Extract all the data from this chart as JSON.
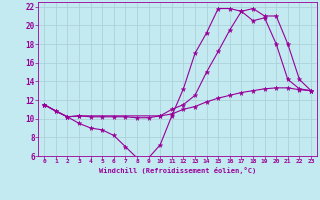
{
  "xlabel": "Windchill (Refroidissement éolien,°C)",
  "bg_color": "#c2eaf0",
  "grid_color": "#aaccd4",
  "line_color": "#990099",
  "xlim": [
    -0.5,
    23.5
  ],
  "ylim": [
    6,
    22.5
  ],
  "xticks": [
    0,
    1,
    2,
    3,
    4,
    5,
    6,
    7,
    8,
    9,
    10,
    11,
    12,
    13,
    14,
    15,
    16,
    17,
    18,
    19,
    20,
    21,
    22,
    23
  ],
  "yticks": [
    6,
    8,
    10,
    12,
    14,
    16,
    18,
    20,
    22
  ],
  "series_A_x": [
    0,
    1,
    2,
    3,
    4,
    5,
    6,
    7,
    8,
    9,
    10,
    11,
    12,
    13,
    14,
    15,
    16,
    17,
    18,
    19,
    20,
    21,
    22,
    23
  ],
  "series_A_y": [
    11.5,
    10.8,
    10.2,
    10.3,
    10.2,
    10.2,
    10.2,
    10.2,
    10.1,
    10.1,
    10.3,
    10.5,
    11.0,
    11.3,
    11.8,
    12.2,
    12.5,
    12.8,
    13.0,
    13.2,
    13.3,
    13.3,
    13.1,
    13.0
  ],
  "series_B_x": [
    0,
    1,
    2,
    3,
    4,
    5,
    6,
    7,
    8,
    9,
    10,
    11,
    12,
    13,
    14,
    15,
    16,
    17,
    18,
    19,
    20,
    21,
    22,
    23
  ],
  "series_B_y": [
    11.5,
    10.8,
    10.2,
    9.5,
    9.0,
    8.8,
    8.2,
    7.0,
    5.8,
    5.8,
    7.2,
    10.3,
    13.2,
    17.0,
    19.2,
    21.8,
    21.8,
    21.5,
    20.5,
    20.8,
    18.0,
    14.2,
    13.2,
    13.0
  ],
  "series_C_x": [
    0,
    2,
    3,
    10,
    11,
    12,
    13,
    14,
    15,
    16,
    17,
    18,
    19,
    20,
    21,
    22,
    23
  ],
  "series_C_y": [
    11.5,
    10.2,
    10.3,
    10.3,
    11.0,
    11.5,
    12.5,
    15.0,
    17.2,
    19.5,
    21.5,
    21.8,
    21.0,
    21.0,
    18.0,
    14.2,
    13.0
  ]
}
